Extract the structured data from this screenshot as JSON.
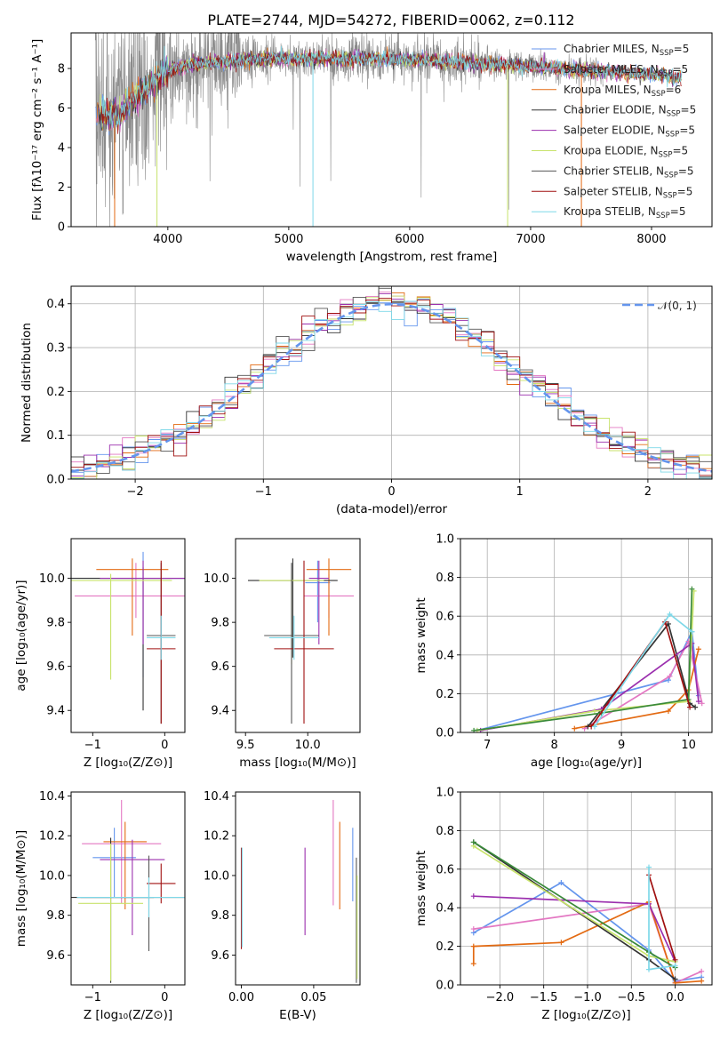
{
  "figure": {
    "title": "PLATE=2744, MJD=54272, FIBERID=0062, z=0.112",
    "colors": [
      "#6495ED",
      "#E377C2",
      "#E36A12",
      "#333333",
      "#9B2FAE",
      "#C8E36B",
      "#555555",
      "#A01010",
      "#7ED8E8"
    ]
  },
  "chart_data": [
    {
      "id": "spectrum",
      "type": "line",
      "xlabel": "wavelength [Angstrom, rest frame]",
      "ylabel": "Flux [fλ10⁻¹⁷ erg cm⁻² s⁻¹ A⁻¹]",
      "xlim": [
        3200,
        8500
      ],
      "ylim": [
        0,
        9.8
      ],
      "xticks": [
        4000,
        5000,
        6000,
        7000,
        8000
      ],
      "yticks": [
        0,
        2,
        4,
        6,
        8
      ],
      "legend_position": "upper-right",
      "series": [
        {
          "name": "Chabrier MILES, N",
          "sub": "SSP",
          "suffix": "=5",
          "color": "#6495ED"
        },
        {
          "name": "Salpeter MILES, N",
          "sub": "SSP",
          "suffix": "=5",
          "color": "#E377C2"
        },
        {
          "name": "Kroupa MILES, N",
          "sub": "SSP",
          "suffix": "=6",
          "color": "#E36A12"
        },
        {
          "name": "Chabrier ELODIE, N",
          "sub": "SSP",
          "suffix": "=5",
          "color": "#333333"
        },
        {
          "name": "Salpeter ELODIE, N",
          "sub": "SSP",
          "suffix": "=5",
          "color": "#9B2FAE"
        },
        {
          "name": "Kroupa ELODIE, N",
          "sub": "SSP",
          "suffix": "=5",
          "color": "#C8E36B"
        },
        {
          "name": "Chabrier STELIB, N",
          "sub": "SSP",
          "suffix": "=5",
          "color": "#555555"
        },
        {
          "name": "Salpeter STELIB, N",
          "sub": "SSP",
          "suffix": "=5",
          "color": "#A01010"
        },
        {
          "name": "Kroupa STELIB, N",
          "sub": "SSP",
          "suffix": "=5",
          "color": "#7ED8E8"
        }
      ],
      "continuum": [
        [
          3400,
          5.8
        ],
        [
          3600,
          5.6
        ],
        [
          3700,
          6.4
        ],
        [
          3800,
          6.9
        ],
        [
          3900,
          7.4
        ],
        [
          4000,
          7.9
        ],
        [
          4200,
          8.2
        ],
        [
          4500,
          8.4
        ],
        [
          5000,
          8.5
        ],
        [
          5500,
          8.5
        ],
        [
          6000,
          8.45
        ],
        [
          6500,
          8.3
        ],
        [
          7000,
          8.1
        ],
        [
          7500,
          7.9
        ],
        [
          8000,
          7.7
        ],
        [
          8250,
          7.5
        ]
      ],
      "data_xrange": [
        3400,
        7600
      ],
      "model_xrange": [
        3400,
        8250
      ]
    },
    {
      "id": "residuals",
      "type": "histogram",
      "xlabel": "(data-model)/error",
      "ylabel": "Normed distribution",
      "xlim": [
        -2.5,
        2.5
      ],
      "ylim": [
        0,
        0.44
      ],
      "xticks": [
        -2,
        -1,
        0,
        1,
        2
      ],
      "yticks": [
        0.0,
        0.1,
        0.2,
        0.3,
        0.4
      ],
      "grid": true,
      "bin_width": 0.1,
      "reference": {
        "name": "𝒩(0, 1)",
        "color": "#6495ED",
        "style": "dashed"
      },
      "legend_position": "upper-right"
    },
    {
      "id": "age_vs_Z",
      "type": "errorbar",
      "xlabel": "Z [log₁₀(Z/Z⊙)]",
      "ylabel": "age  [log₁₀(age/yr)]",
      "xlim": [
        -1.3,
        0.28
      ],
      "ylim": [
        9.3,
        10.18
      ],
      "xticks": [
        -1,
        0
      ],
      "yticks": [
        9.4,
        9.6,
        9.8,
        10.0
      ],
      "points": [
        {
          "x": -0.3,
          "y": 10.0,
          "xerr": 1.0,
          "yerr": [
            0.45,
            0.12
          ],
          "color": "#6495ED"
        },
        {
          "x": -0.4,
          "y": 9.92,
          "xerr": 0.85,
          "yerr": [
            0.1,
            0.15
          ],
          "color": "#E377C2"
        },
        {
          "x": -0.45,
          "y": 10.04,
          "xerr": 0.5,
          "yerr": [
            0.3,
            0.05
          ],
          "color": "#E36A12"
        },
        {
          "x": -0.3,
          "y": 10.0,
          "xerr": 1.05,
          "yerr": [
            0.6,
            0.05
          ],
          "color": "#333333"
        },
        {
          "x": -0.3,
          "y": 10.0,
          "xerr": 0.6,
          "yerr": [
            0.3,
            0.08
          ],
          "color": "#9B2FAE"
        },
        {
          "x": -0.75,
          "y": 9.99,
          "xerr": 0.85,
          "yerr": [
            0.45,
            0.03
          ],
          "color": "#C8E36B"
        },
        {
          "x": -0.05,
          "y": 9.74,
          "xerr": 0.2,
          "yerr": [
            0.4,
            0.33
          ],
          "color": "#555555"
        },
        {
          "x": -0.05,
          "y": 9.68,
          "xerr": 0.2,
          "yerr": [
            0.34,
            0.4
          ],
          "color": "#A01010"
        },
        {
          "x": -0.05,
          "y": 9.73,
          "xerr": 0.2,
          "yerr": [
            0.1,
            0.1
          ],
          "color": "#7ED8E8"
        }
      ]
    },
    {
      "id": "age_vs_mass",
      "type": "errorbar",
      "xlabel": "mass [log₁₀(M/M⊙)]",
      "ylabel": "",
      "xlim": [
        9.42,
        10.42
      ],
      "ylim": [
        9.3,
        10.18
      ],
      "xticks": [
        9.5,
        10.0
      ],
      "yticks": [
        9.4,
        9.6,
        9.8,
        10.0
      ],
      "points": [
        {
          "x": 10.08,
          "y": 9.98,
          "xerr": 0.1,
          "yerr": [
            0.18,
            0.1
          ],
          "color": "#6495ED"
        },
        {
          "x": 10.17,
          "y": 9.92,
          "xerr": 0.2,
          "yerr": [
            0.1,
            0.1
          ],
          "color": "#E377C2"
        },
        {
          "x": 10.17,
          "y": 10.04,
          "xerr": 0.18,
          "yerr": [
            0.3,
            0.05
          ],
          "color": "#E36A12"
        },
        {
          "x": 9.88,
          "y": 9.99,
          "xerr": 0.36,
          "yerr": [
            0.35,
            0.1
          ],
          "color": "#333333"
        },
        {
          "x": 10.09,
          "y": 10.0,
          "xerr": 0.08,
          "yerr": [
            0.3,
            0.08
          ],
          "color": "#9B2FAE"
        },
        {
          "x": 9.87,
          "y": 9.99,
          "xerr": 0.26,
          "yerr": [
            0.38,
            0.03
          ],
          "color": "#C8E36B"
        },
        {
          "x": 9.87,
          "y": 9.74,
          "xerr": 0.22,
          "yerr": [
            0.4,
            0.33
          ],
          "color": "#555555"
        },
        {
          "x": 9.97,
          "y": 9.68,
          "xerr": 0.24,
          "yerr": [
            0.34,
            0.4
          ],
          "color": "#A01010"
        },
        {
          "x": 9.89,
          "y": 9.73,
          "xerr": 0.2,
          "yerr": [
            0.1,
            0.1
          ],
          "color": "#7ED8E8"
        }
      ]
    },
    {
      "id": "weight_vs_age",
      "type": "line",
      "xlabel": "age  [log₁₀(age/yr)]",
      "ylabel": "mass weight",
      "xlim": [
        6.6,
        10.35
      ],
      "ylim": [
        0,
        1.0
      ],
      "xticks": [
        7,
        8,
        9,
        10
      ],
      "yticks": [
        0.0,
        0.2,
        0.4,
        0.6,
        0.8,
        1.0
      ],
      "grid": true,
      "series": [
        {
          "color": "#6495ED",
          "x": [
            6.85,
            9.7,
            10.05,
            10.15
          ],
          "y": [
            0.01,
            0.27,
            0.52,
            0.19
          ]
        },
        {
          "color": "#E377C2",
          "x": [
            8.45,
            9.72,
            10.0,
            10.2
          ],
          "y": [
            0.02,
            0.29,
            0.47,
            0.15
          ]
        },
        {
          "color": "#E36A12",
          "x": [
            8.3,
            9.7,
            10.0,
            10.15
          ],
          "y": [
            0.02,
            0.11,
            0.22,
            0.43
          ]
        },
        {
          "color": "#333333",
          "x": [
            8.5,
            9.7,
            10.02,
            10.1
          ],
          "y": [
            0.03,
            0.56,
            0.15,
            0.13
          ]
        },
        {
          "color": "#9B2FAE",
          "x": [
            6.9,
            8.7,
            10.05,
            10.15
          ],
          "y": [
            0.01,
            0.12,
            0.46,
            0.16
          ]
        },
        {
          "color": "#C8E36B",
          "x": [
            6.85,
            8.6,
            10.0,
            10.08
          ],
          "y": [
            0.01,
            0.11,
            0.16,
            0.73
          ]
        },
        {
          "color": "#3A8A3A",
          "x": [
            6.8,
            8.7,
            10.0,
            10.05
          ],
          "y": [
            0.01,
            0.1,
            0.17,
            0.74
          ]
        },
        {
          "color": "#A01010",
          "x": [
            8.55,
            9.65,
            10.02
          ],
          "y": [
            0.03,
            0.57,
            0.13
          ]
        },
        {
          "color": "#7ED8E8",
          "x": [
            8.6,
            9.72,
            10.05
          ],
          "y": [
            0.03,
            0.61,
            0.52
          ]
        }
      ]
    },
    {
      "id": "mass_vs_Z",
      "type": "errorbar",
      "xlabel": "Z [log₁₀(Z/Z⊙)]",
      "ylabel": "mass [log₁₀(M/M⊙)]",
      "xlim": [
        -1.3,
        0.28
      ],
      "ylim": [
        9.45,
        10.42
      ],
      "xticks": [
        -1,
        0
      ],
      "yticks": [
        9.6,
        9.8,
        10.0,
        10.2,
        10.4
      ],
      "points": [
        {
          "x": -0.7,
          "y": 10.09,
          "xerr": 0.3,
          "yerr": [
            0.2,
            0.15
          ],
          "color": "#6495ED"
        },
        {
          "x": -0.6,
          "y": 10.16,
          "xerr": 0.55,
          "yerr": [
            0.3,
            0.22
          ],
          "color": "#E377C2"
        },
        {
          "x": -0.55,
          "y": 10.17,
          "xerr": 0.3,
          "yerr": [
            0.34,
            0.1
          ],
          "color": "#E36A12"
        },
        {
          "x": -0.75,
          "y": 9.89,
          "xerr": 0.6,
          "yerr": [
            0.43,
            0.3
          ],
          "color": "#333333"
        },
        {
          "x": -0.45,
          "y": 10.08,
          "xerr": 0.45,
          "yerr": [
            0.38,
            0.1
          ],
          "color": "#9B2FAE"
        },
        {
          "x": -0.75,
          "y": 9.86,
          "xerr": 0.45,
          "yerr": [
            0.39,
            0.3
          ],
          "color": "#C8E36B"
        },
        {
          "x": -0.22,
          "y": 9.89,
          "xerr": 0.95,
          "yerr": [
            0.27,
            0.21
          ],
          "color": "#555555"
        },
        {
          "x": -0.05,
          "y": 9.96,
          "xerr": 0.2,
          "yerr": [
            0.1,
            0.1
          ],
          "color": "#A01010"
        },
        {
          "x": -0.22,
          "y": 9.89,
          "xerr": 1.0,
          "yerr": [
            0.1,
            0.1
          ],
          "color": "#7ED8E8"
        }
      ]
    },
    {
      "id": "mass_vs_ebv",
      "type": "errorbar",
      "xlabel": "E(B-V)",
      "ylabel": "",
      "xlim": [
        -0.004,
        0.082
      ],
      "ylim": [
        9.45,
        10.42
      ],
      "xticks": [
        0.0,
        0.05
      ],
      "yticks": [
        9.6,
        9.8,
        10.0,
        10.2,
        10.4
      ],
      "points": [
        {
          "x": 0.0,
          "y": 10.0,
          "xerr": 0,
          "yerr": [
            0.37,
            0.14
          ],
          "color": "#A01010"
        },
        {
          "x": 0.0005,
          "y": 9.9,
          "xerr": 0,
          "yerr": [
            0.26,
            0.24
          ],
          "color": "#7ED8E8"
        },
        {
          "x": 0.044,
          "y": 9.92,
          "xerr": 0,
          "yerr": [
            0.22,
            0.22
          ],
          "color": "#9B2FAE"
        },
        {
          "x": 0.0635,
          "y": 10.1,
          "xerr": 0,
          "yerr": [
            0.25,
            0.28
          ],
          "color": "#E377C2"
        },
        {
          "x": 0.068,
          "y": 10.05,
          "xerr": 0,
          "yerr": [
            0.22,
            0.22
          ],
          "color": "#E36A12"
        },
        {
          "x": 0.077,
          "y": 10.06,
          "xerr": 0,
          "yerr": [
            0.19,
            0.18
          ],
          "color": "#6495ED"
        },
        {
          "x": 0.0795,
          "y": 9.88,
          "xerr": 0,
          "yerr": [
            0.42,
            0.21
          ],
          "color": "#555555"
        },
        {
          "x": 0.08,
          "y": 9.8,
          "xerr": 0,
          "yerr": [
            0.32,
            0.2
          ],
          "color": "#C8E36B"
        }
      ]
    },
    {
      "id": "weight_vs_Z",
      "type": "line",
      "xlabel": "Z [log₁₀(Z/Z⊙)]",
      "ylabel": "mass weight",
      "xlim": [
        -2.45,
        0.42
      ],
      "ylim": [
        0,
        1.0
      ],
      "xticks": [
        -2.0,
        -1.5,
        -1.0,
        -0.5,
        0.0
      ],
      "yticks": [
        0.0,
        0.2,
        0.4,
        0.6,
        0.8,
        1.0
      ],
      "grid": true,
      "series": [
        {
          "color": "#6495ED",
          "x": [
            -2.3,
            -1.3,
            -0.3,
            0.0,
            0.3
          ],
          "y": [
            0.27,
            0.53,
            0.18,
            0.02,
            0.04
          ]
        },
        {
          "color": "#E377C2",
          "x": [
            -2.3,
            -0.3,
            0.0,
            0.3
          ],
          "y": [
            0.29,
            0.42,
            0.01,
            0.07
          ]
        },
        {
          "color": "#E36A12",
          "x": [
            -2.3,
            -2.3,
            -1.3,
            -0.3,
            0.0,
            0.3
          ],
          "y": [
            0.11,
            0.2,
            0.22,
            0.43,
            0.01,
            0.02
          ]
        },
        {
          "color": "#333333",
          "x": [
            -2.3,
            -0.3,
            0.0
          ],
          "y": [
            0.74,
            0.13,
            0.03
          ]
        },
        {
          "color": "#9B2FAE",
          "x": [
            -2.3,
            -0.3,
            0.0
          ],
          "y": [
            0.46,
            0.42,
            0.12
          ]
        },
        {
          "color": "#C8E36B",
          "x": [
            -2.3,
            -0.3,
            0.0
          ],
          "y": [
            0.72,
            0.15,
            0.12
          ]
        },
        {
          "color": "#3A8A3A",
          "x": [
            -2.3,
            -0.3,
            0.0
          ],
          "y": [
            0.74,
            0.17,
            0.09
          ]
        },
        {
          "color": "#A01010",
          "x": [
            -0.3,
            0.0
          ],
          "y": [
            0.57,
            0.13
          ]
        },
        {
          "color": "#7ED8E8",
          "x": [
            -0.3,
            -0.3,
            0.0
          ],
          "y": [
            0.61,
            0.08,
            0.1
          ]
        }
      ]
    }
  ]
}
